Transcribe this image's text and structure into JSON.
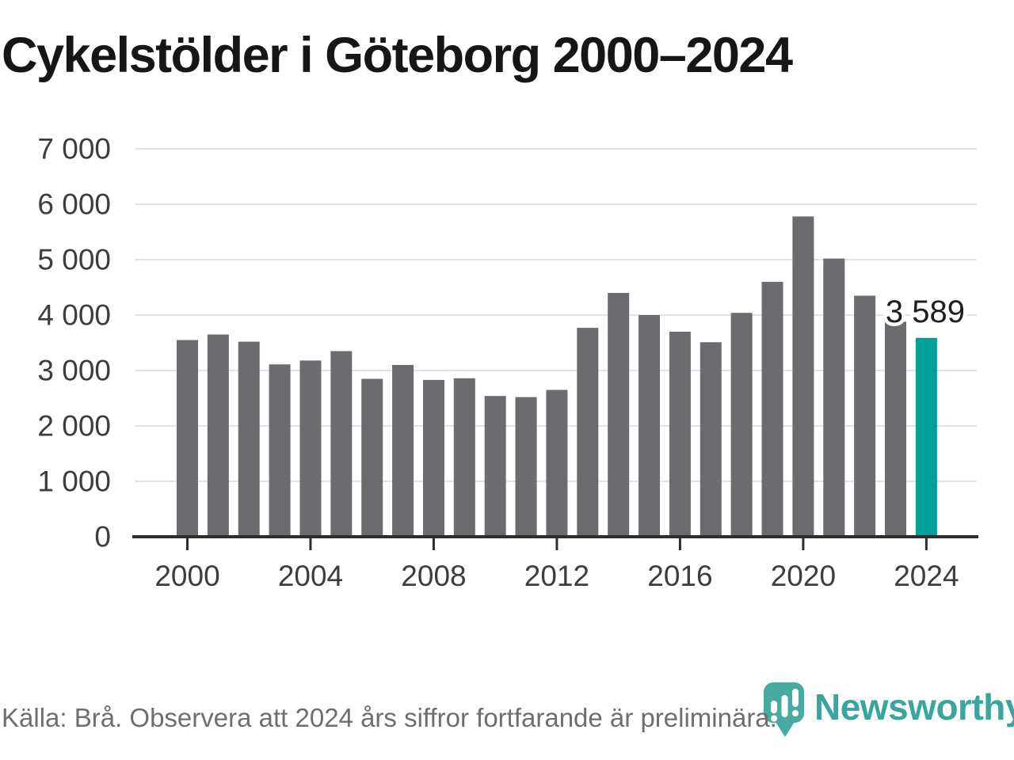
{
  "title": "Cykelstölder i Göteborg 2000–2024",
  "source_note": "Källa: Brå. Observera att 2024 års siffror fortfarande är preliminära.",
  "annotation": {
    "text": "3 589",
    "year": "2024"
  },
  "brand": {
    "name": "Newsworthy",
    "icon": "bar-chart-pin-icon",
    "color": "#3AA59D"
  },
  "colors": {
    "bar": "#6B6B70",
    "highlight": "#00A09A",
    "axis": "#2E2E2E",
    "gridline": "#E3E3E3",
    "tick_label": "#3D3D3D",
    "annotation": "#1E1E1E",
    "title": "#161616",
    "footer": "#6E6E6E"
  },
  "chart_data": {
    "type": "bar",
    "title": "Cykelstölder i Göteborg 2000–2024",
    "x": [
      2000,
      2001,
      2002,
      2003,
      2004,
      2005,
      2006,
      2007,
      2008,
      2009,
      2010,
      2011,
      2012,
      2013,
      2014,
      2015,
      2016,
      2017,
      2018,
      2019,
      2020,
      2021,
      2022,
      2023,
      2024
    ],
    "values": [
      3550,
      3650,
      3520,
      3110,
      3180,
      3350,
      2850,
      3100,
      2830,
      2860,
      2540,
      2520,
      2650,
      3770,
      4400,
      4000,
      3700,
      3510,
      4040,
      4600,
      5780,
      5020,
      4350,
      3880,
      3589
    ],
    "highlight_index": 24,
    "highlighted_value_label": "3 589",
    "xlabel": "",
    "ylabel": "",
    "ylim": [
      0,
      7000
    ],
    "y_tick_labels": [
      "0",
      "1 000",
      "2 000",
      "3 000",
      "4 000",
      "5 000",
      "6 000",
      "7 000"
    ],
    "x_tick_labels": [
      "2000",
      "2004",
      "2008",
      "2012",
      "2016",
      "2020",
      "2024"
    ],
    "grid": "horizontal",
    "legend": "none"
  }
}
